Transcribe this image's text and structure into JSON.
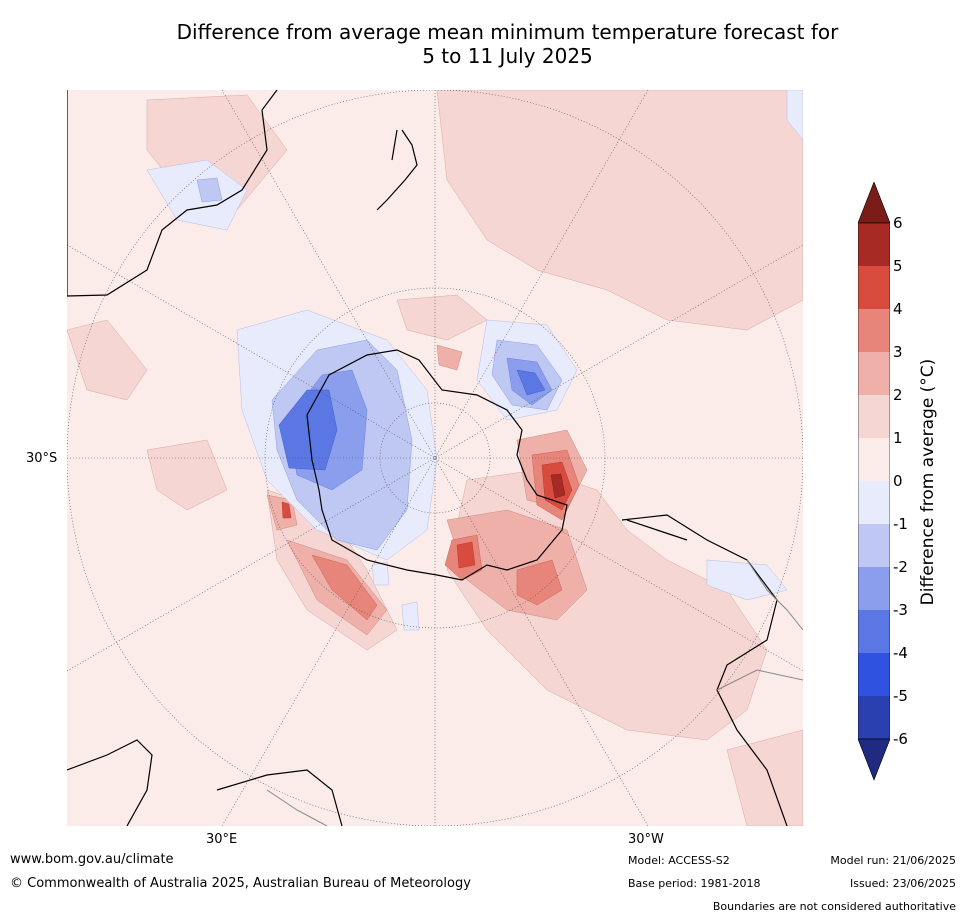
{
  "title": {
    "line1": "Difference from average mean minimum temperature forecast for",
    "line2": "5 to 11 July 2025"
  },
  "map": {
    "projection": "south polar stereographic",
    "lat_label_left": "30°S",
    "lon_label_bottom_left": "30°E",
    "lon_label_bottom_right": "30°W",
    "colors": {
      "land_outline": "#000000",
      "graticule": "#555555",
      "border": "#888888"
    }
  },
  "colorbar": {
    "title": "Difference from average (°C)",
    "ticks": [
      "6",
      "5",
      "4",
      "3",
      "2",
      "1",
      "0",
      "-1",
      "-2",
      "-3",
      "-4",
      "-5",
      "-6"
    ],
    "bins": [
      {
        "range": ">6",
        "color": "#7a1c17"
      },
      {
        "range": "5 to 6",
        "color": "#a72a24"
      },
      {
        "range": "4 to 5",
        "color": "#d84c40"
      },
      {
        "range": "3 to 4",
        "color": "#e8857a"
      },
      {
        "range": "2 to 3",
        "color": "#eeb0a8"
      },
      {
        "range": "1 to 2",
        "color": "#f5d6d2"
      },
      {
        "range": "0 to 1",
        "color": "#fbebe9"
      },
      {
        "range": "-1 to 0",
        "color": "#e8ebfb"
      },
      {
        "range": "-2 to -1",
        "color": "#bfc8f3"
      },
      {
        "range": "-3 to -2",
        "color": "#8b9eed"
      },
      {
        "range": "-4 to -3",
        "color": "#5b77e4"
      },
      {
        "range": "-5 to -4",
        "color": "#2f53e0"
      },
      {
        "range": "-6 to -5",
        "color": "#2a3fb0"
      },
      {
        "range": "<-6",
        "color": "#1f2a80"
      }
    ]
  },
  "footer": {
    "website": "www.bom.gov.au/climate",
    "copyright": "© Commonwealth of Australia 2025, Australian Bureau of Meteorology",
    "model": "Model: ACCESS-S2",
    "base_period": "Base period: 1981-2018",
    "model_run": "Model run: 21/06/2025",
    "issued": "Issued: 23/06/2025",
    "disclaimer": "Boundaries are not considered authoritative"
  }
}
